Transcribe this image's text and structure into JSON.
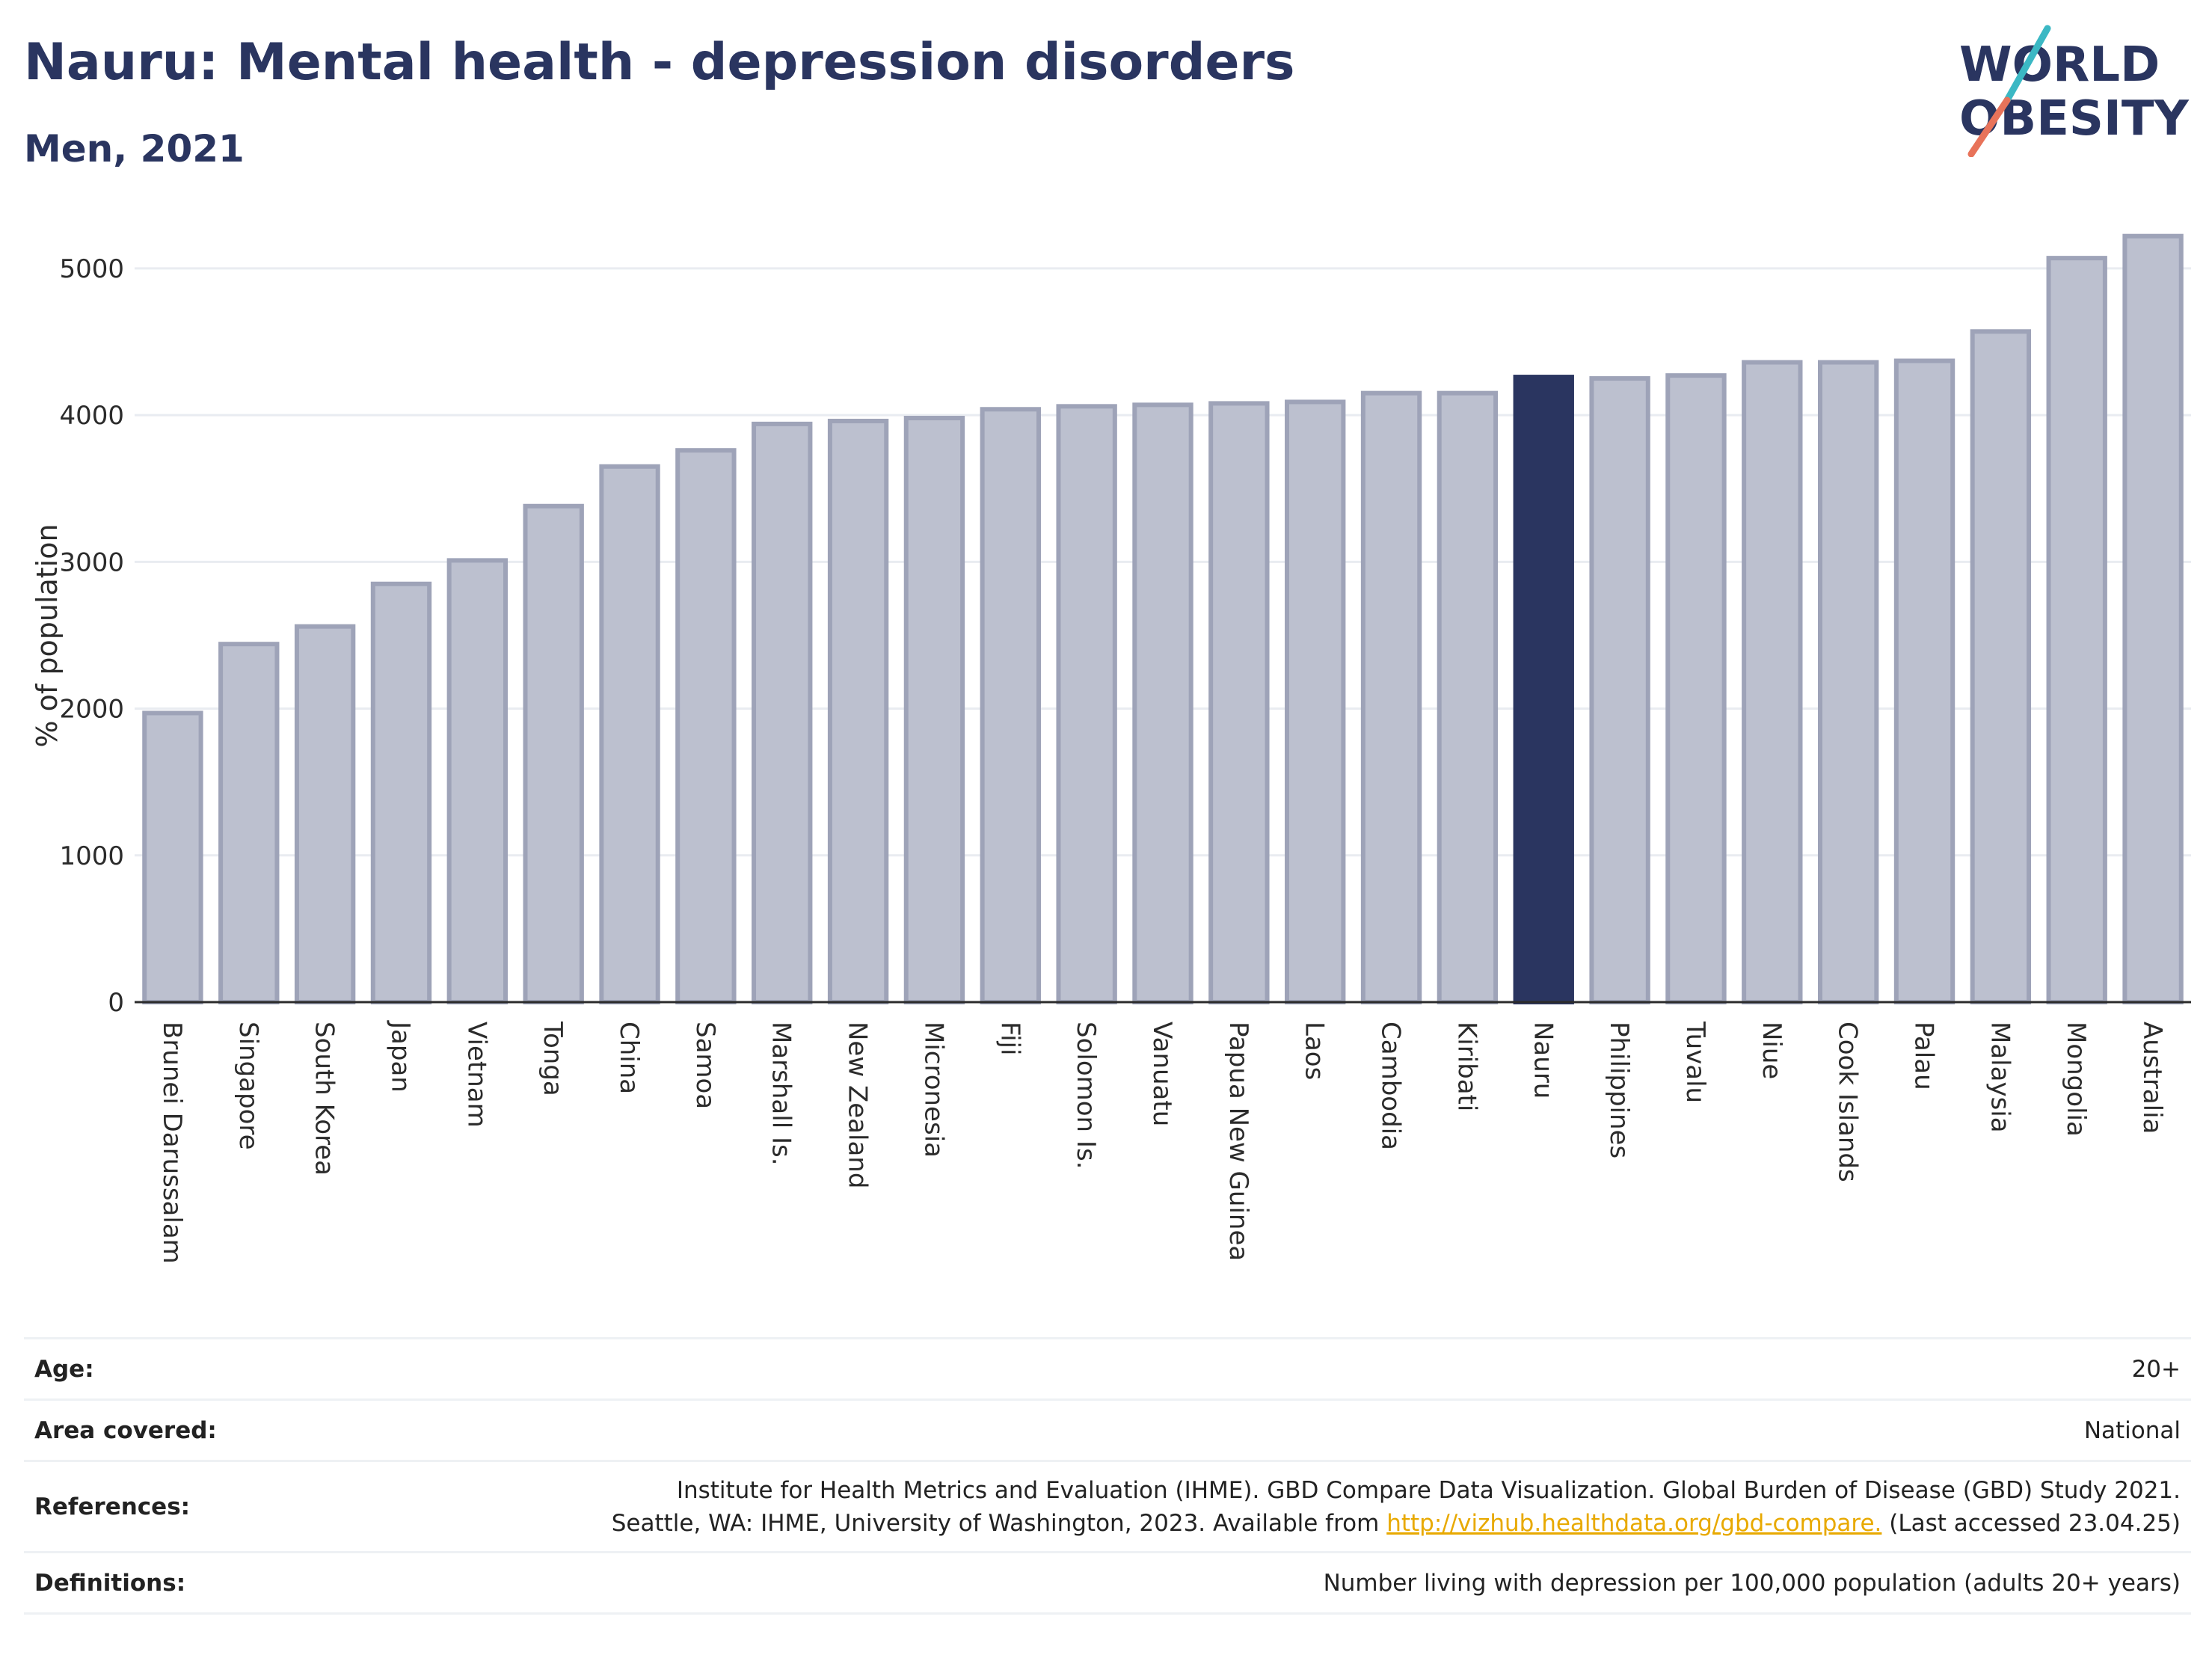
{
  "header": {
    "title": "Nauru: Mental health - depression disorders",
    "subtitle": "Men, 2021"
  },
  "logo": {
    "line1": "WORLD",
    "line2": "OBESITY",
    "colors": [
      "#3bb8c4",
      "#e8735a",
      "#2a3560"
    ]
  },
  "chart_data": {
    "type": "bar",
    "ylabel": "% of population",
    "ylim": [
      0,
      5300
    ],
    "yticks": [
      0,
      1000,
      2000,
      3000,
      4000,
      5000
    ],
    "grid": true,
    "highlight": "Nauru",
    "colors": {
      "bar": "#bcc0cf",
      "bar_border": "#9ea3b8",
      "highlight": "#2a3560"
    },
    "categories": [
      "Brunei Darussalam",
      "Singapore",
      "South Korea",
      "Japan",
      "Vietnam",
      "Tonga",
      "China",
      "Samoa",
      "Marshall Is.",
      "New Zealand",
      "Micronesia",
      "Fiji",
      "Solomon Is.",
      "Vanuatu",
      "Papua New Guinea",
      "Laos",
      "Cambodia",
      "Kiribati",
      "Nauru",
      "Philippines",
      "Tuvalu",
      "Niue",
      "Cook Islands",
      "Palau",
      "Malaysia",
      "Mongolia",
      "Australia"
    ],
    "values": [
      1970,
      2440,
      2560,
      2850,
      3010,
      3380,
      3650,
      3760,
      3940,
      3960,
      3980,
      4040,
      4060,
      4070,
      4080,
      4090,
      4150,
      4150,
      4260,
      4250,
      4270,
      4360,
      4360,
      4370,
      4570,
      5070,
      5220
    ]
  },
  "meta": {
    "age_label": "Age:",
    "age_value": "20+",
    "area_label": "Area covered:",
    "area_value": "National",
    "refs_label": "References:",
    "refs_line1": "Institute for Health Metrics and Evaluation (IHME). GBD Compare Data Visualization. Global Burden of Disease (GBD) Study 2021.",
    "refs_line2_pre": "Seattle, WA: IHME, University of Washington, 2023. Available from",
    "refs_link": "http://vizhub.healthdata.org/gbd-compare.",
    "refs_line2_post": "(Last accessed 23.04.25)",
    "defs_label": "Definitions:",
    "defs_value": "Number living with depression per 100,000 population (adults 20+ years)"
  }
}
